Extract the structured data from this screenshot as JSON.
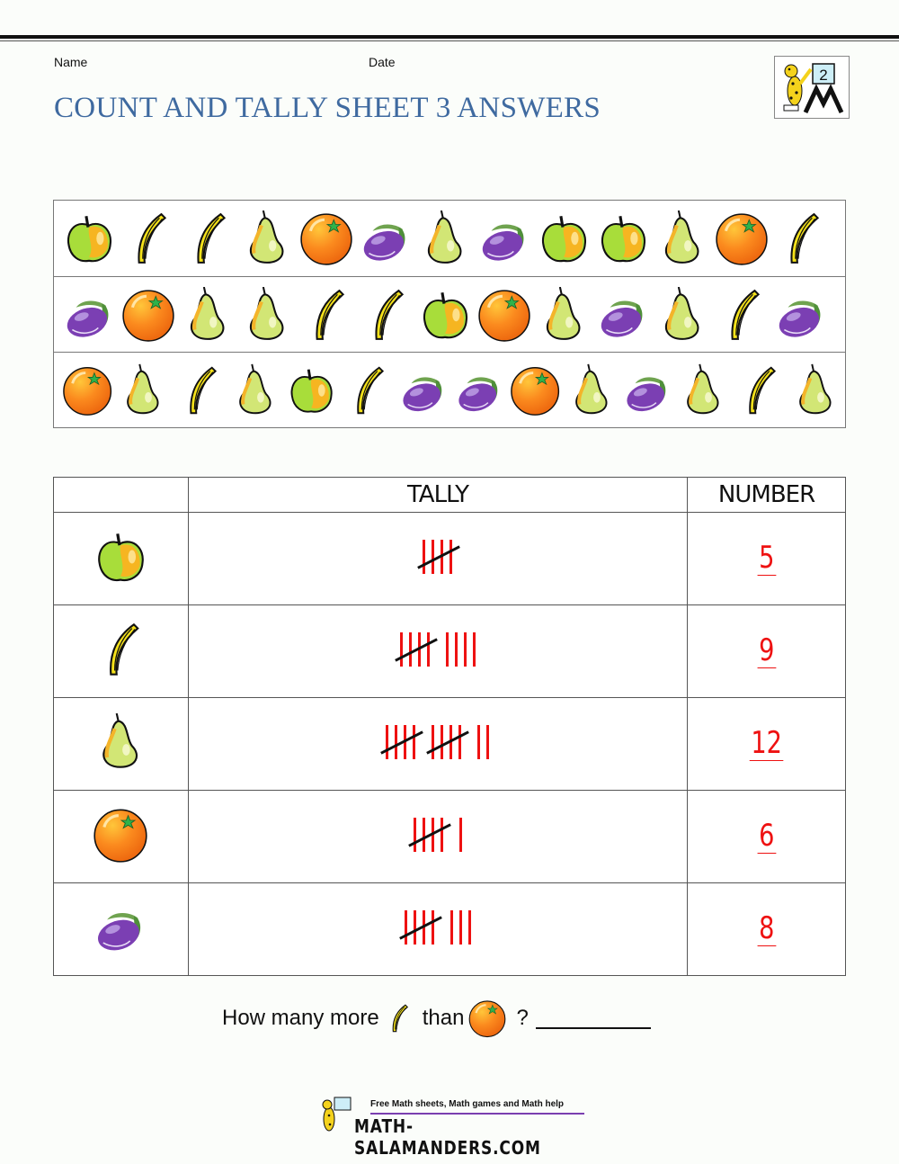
{
  "header": {
    "name_label": "Name",
    "date_label": "Date",
    "title": "COUNT AND TALLY SHEET 3 ANSWERS",
    "logo_badge": "2"
  },
  "colors": {
    "title": "#3f6aa0",
    "tally_stroke": "#ee1111",
    "tally_slash": "#111111",
    "answer": "#ee1111",
    "footer_bar": "#7a3fb0"
  },
  "fruit_strips": [
    [
      "apple",
      "banana",
      "banana",
      "pear",
      "orange",
      "plum",
      "pear",
      "plum",
      "apple",
      "apple",
      "pear",
      "orange",
      "banana"
    ],
    [
      "plum",
      "orange",
      "pear",
      "pear",
      "banana",
      "banana",
      "apple",
      "orange",
      "pear",
      "plum",
      "pear",
      "banana",
      "plum"
    ],
    [
      "orange",
      "pear",
      "banana",
      "pear",
      "apple",
      "banana",
      "plum",
      "plum",
      "orange",
      "pear",
      "plum",
      "pear",
      "banana",
      "pear"
    ]
  ],
  "table": {
    "headers": [
      "",
      "TALLY",
      "NUMBER"
    ],
    "rows": [
      {
        "fruit": "apple",
        "icon": "apple-icon",
        "tally": "5",
        "number": "5"
      },
      {
        "fruit": "banana",
        "icon": "banana-icon",
        "tally": "9",
        "number": "9"
      },
      {
        "fruit": "pear",
        "icon": "pear-icon",
        "tally": "12",
        "number": "12"
      },
      {
        "fruit": "orange",
        "icon": "orange-icon",
        "tally": "6",
        "number": "6"
      },
      {
        "fruit": "plum",
        "icon": "plum-icon",
        "tally": "8",
        "number": "8"
      }
    ]
  },
  "question": {
    "prefix": "How many more",
    "first_fruit": "banana",
    "middle": "than",
    "second_fruit": "orange",
    "suffix": "?"
  },
  "footer": {
    "tagline": "Free Math sheets, Math games and Math help",
    "site": "MATH-SALAMANDERS.COM"
  }
}
